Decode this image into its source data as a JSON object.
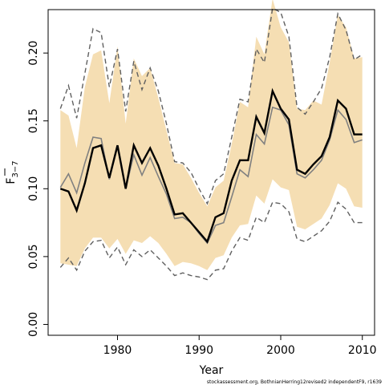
{
  "chart_data": {
    "type": "line",
    "title": "",
    "xlabel": "Year",
    "ylabel_main": "F",
    "ylabel_sub": "3−7",
    "credit": "stockassessment.org, BothnianHerring12revised2 independentF9, r1639",
    "xlim": [
      1971.5,
      2011.5
    ],
    "ylim": [
      -0.008,
      0.232
    ],
    "xticks": [
      1980,
      1990,
      2000,
      2010
    ],
    "yticks": [
      0.0,
      0.05,
      0.1,
      0.15,
      0.2
    ],
    "ytick_labels": [
      "0.00",
      "0.05",
      "0.10",
      "0.15",
      "0.20"
    ],
    "colors": {
      "band": "#f5deb3",
      "estimate": "#000000",
      "previous": "#808080",
      "previous_ci": "#606060",
      "axis": "#000000"
    },
    "x": [
      1973,
      1974,
      1975,
      1976,
      1977,
      1978,
      1979,
      1980,
      1981,
      1982,
      1983,
      1984,
      1985,
      1986,
      1987,
      1988,
      1989,
      1990,
      1991,
      1992,
      1993,
      1994,
      1995,
      1996,
      1997,
      1998,
      1999,
      2000,
      2001,
      2002,
      2003,
      2004,
      2005,
      2006,
      2007,
      2008,
      2009,
      2010
    ],
    "series": [
      {
        "role": "ci_band_upper",
        "values": [
          0.158,
          0.154,
          0.13,
          0.175,
          0.199,
          0.202,
          0.163,
          0.205,
          0.148,
          0.196,
          0.183,
          0.189,
          0.167,
          0.143,
          0.119,
          0.118,
          0.108,
          0.097,
          0.087,
          0.101,
          0.106,
          0.133,
          0.164,
          0.16,
          0.212,
          0.199,
          0.24,
          0.219,
          0.208,
          0.159,
          0.158,
          0.165,
          0.162,
          0.193,
          0.228,
          0.219,
          0.196,
          0.197
        ]
      },
      {
        "role": "ci_band_lower",
        "values": [
          0.045,
          0.044,
          0.043,
          0.056,
          0.064,
          0.064,
          0.056,
          0.063,
          0.052,
          0.062,
          0.06,
          0.065,
          0.06,
          0.052,
          0.043,
          0.046,
          0.045,
          0.043,
          0.04,
          0.049,
          0.051,
          0.064,
          0.073,
          0.074,
          0.095,
          0.089,
          0.107,
          0.101,
          0.099,
          0.072,
          0.07,
          0.074,
          0.078,
          0.088,
          0.104,
          0.1,
          0.087,
          0.086
        ]
      },
      {
        "role": "estimate",
        "values": [
          0.1,
          0.098,
          0.084,
          0.104,
          0.13,
          0.132,
          0.108,
          0.132,
          0.1,
          0.132,
          0.119,
          0.13,
          0.117,
          0.1,
          0.081,
          0.082,
          0.075,
          0.068,
          0.061,
          0.079,
          0.082,
          0.106,
          0.121,
          0.121,
          0.153,
          0.141,
          0.172,
          0.159,
          0.151,
          0.114,
          0.111,
          0.118,
          0.124,
          0.138,
          0.165,
          0.159,
          0.14,
          0.14
        ]
      },
      {
        "role": "previous_estimate",
        "values": [
          0.101,
          0.111,
          0.097,
          0.119,
          0.138,
          0.137,
          0.107,
          0.131,
          0.1,
          0.125,
          0.11,
          0.123,
          0.109,
          0.096,
          0.078,
          0.079,
          0.075,
          0.067,
          0.06,
          0.073,
          0.075,
          0.094,
          0.114,
          0.109,
          0.14,
          0.133,
          0.16,
          0.158,
          0.147,
          0.111,
          0.108,
          0.114,
          0.121,
          0.136,
          0.158,
          0.151,
          0.134,
          0.136
        ]
      },
      {
        "role": "previous_ci_upper",
        "values": [
          0.159,
          0.176,
          0.152,
          0.185,
          0.218,
          0.215,
          0.175,
          0.203,
          0.157,
          0.194,
          0.173,
          0.189,
          0.172,
          0.148,
          0.12,
          0.119,
          0.112,
          0.1,
          0.089,
          0.106,
          0.111,
          0.138,
          0.166,
          0.164,
          0.203,
          0.193,
          0.233,
          0.23,
          0.212,
          0.16,
          0.155,
          0.164,
          0.174,
          0.197,
          0.229,
          0.217,
          0.195,
          0.199
        ]
      },
      {
        "role": "previous_ci_lower",
        "values": [
          0.042,
          0.049,
          0.04,
          0.054,
          0.061,
          0.062,
          0.049,
          0.057,
          0.044,
          0.055,
          0.05,
          0.055,
          0.049,
          0.043,
          0.036,
          0.038,
          0.036,
          0.035,
          0.033,
          0.04,
          0.041,
          0.054,
          0.064,
          0.062,
          0.079,
          0.075,
          0.09,
          0.089,
          0.083,
          0.063,
          0.061,
          0.065,
          0.069,
          0.076,
          0.09,
          0.085,
          0.075,
          0.075
        ]
      }
    ]
  }
}
